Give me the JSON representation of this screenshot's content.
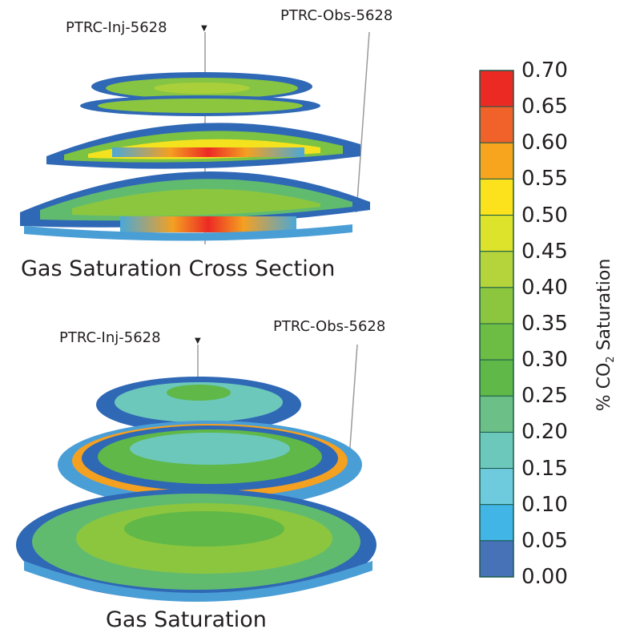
{
  "top_panel": {
    "injector_label": "PTRC-Inj-5628",
    "observer_label": "PTRC-Obs-5628",
    "caption": "Gas Saturation Cross Section"
  },
  "bottom_panel": {
    "injector_label": "PTRC-Inj-5628",
    "observer_label": "PTRC-Obs-5628",
    "caption": "Gas Saturation"
  },
  "color_scale": {
    "title_prefix": "% CO",
    "title_subscript": "2",
    "title_suffix": " Saturation",
    "ticks": [
      "0.70",
      "0.65",
      "0.60",
      "0.55",
      "0.50",
      "0.45",
      "0.40",
      "0.35",
      "0.30",
      "0.25",
      "0.20",
      "0.15",
      "0.10",
      "0.05",
      "0.00"
    ],
    "colors": [
      "#ec2a24",
      "#f0622a",
      "#f7a51e",
      "#fbe21c",
      "#dde22a",
      "#b5d33a",
      "#8cc63f",
      "#6dbd45",
      "#5fb847",
      "#6cbf86",
      "#6cc8bb",
      "#6ecbde",
      "#41b5e6",
      "#4772b8"
    ]
  }
}
